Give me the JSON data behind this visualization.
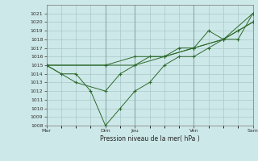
{
  "title": "",
  "xlabel": "Pression niveau de la mer( hPa )",
  "ylabel": "",
  "background_color": "#cde8e8",
  "line_color": "#2d6a2d",
  "grid_color": "#aac8c8",
  "ylim": [
    1008,
    1022
  ],
  "yticks": [
    1008,
    1009,
    1010,
    1011,
    1012,
    1013,
    1014,
    1015,
    1016,
    1017,
    1018,
    1019,
    1020,
    1021
  ],
  "xtick_labels": [
    "Mar",
    "Dim",
    "Jeu",
    "Ven",
    "Sam"
  ],
  "xtick_positions": [
    0,
    4,
    6,
    10,
    14
  ],
  "xlim": [
    0,
    14
  ],
  "vlines": [
    4,
    6,
    10,
    14
  ],
  "lines": [
    {
      "x": [
        0,
        1,
        2,
        3,
        4,
        5,
        6,
        7,
        8,
        9,
        10,
        11,
        12,
        13,
        14
      ],
      "y": [
        1015,
        1014,
        1014,
        1012,
        1008,
        1010,
        1012,
        1013,
        1015,
        1016,
        1016,
        1017,
        1018,
        1018,
        1021
      ]
    },
    {
      "x": [
        0,
        2,
        4,
        5,
        6,
        7,
        8,
        9,
        10,
        11,
        12,
        13,
        14
      ],
      "y": [
        1015,
        1013,
        1012,
        1014,
        1015,
        1016,
        1016,
        1017,
        1017,
        1019,
        1018,
        1019,
        1020
      ]
    },
    {
      "x": [
        0,
        4,
        6,
        8,
        10,
        12,
        14
      ],
      "y": [
        1015,
        1015,
        1016,
        1016,
        1017,
        1018,
        1021
      ]
    },
    {
      "x": [
        0,
        4,
        6,
        8,
        10,
        12,
        14
      ],
      "y": [
        1015,
        1015,
        1015,
        1016,
        1017,
        1018,
        1020
      ]
    }
  ]
}
